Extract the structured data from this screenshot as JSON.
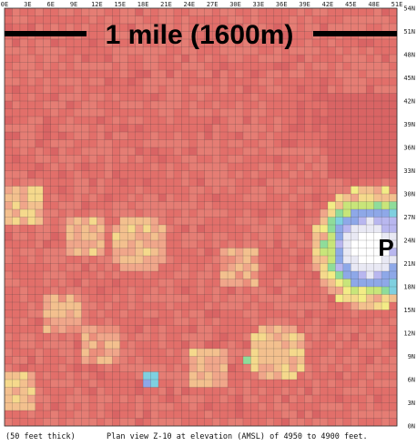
{
  "map": {
    "x_tick_labels": [
      "0E",
      "3E",
      "6E",
      "9E",
      "12E",
      "15E",
      "18E",
      "21E",
      "24E",
      "27E",
      "30E",
      "33E",
      "36E",
      "39E",
      "42E",
      "45E",
      "48E",
      "51E"
    ],
    "y_tick_labels": [
      "54N",
      "51N",
      "48N",
      "45N",
      "42N",
      "39N",
      "36N",
      "33N",
      "30N",
      "27N",
      "24N",
      "21N",
      "18N",
      "15N",
      "12N",
      "9N",
      "6N",
      "3N",
      "0N"
    ],
    "scale_bar_label": "1 mile (1600m)",
    "marker_label": "P",
    "colors": {
      "background": "#ffffff",
      "grid_line": "#3a3a3a",
      "scale_bar": "#000000",
      "palette": [
        "#c95f5f",
        "#d96464",
        "#e26f6a",
        "#e57d74",
        "#ec8f7c",
        "#f0a68a",
        "#f3c08e",
        "#f5d98c",
        "#f3ec86",
        "#c8e57a",
        "#8fdc9a",
        "#7fd0e0",
        "#8ea8e8",
        "#b9b7ef",
        "#e9e9f4",
        "#ffffff"
      ]
    }
  },
  "caption": {
    "left": "(50 feet thick)",
    "right": "Plan view Z-10 at elevation (AMSL) of 4950 to 4900 feet."
  }
}
